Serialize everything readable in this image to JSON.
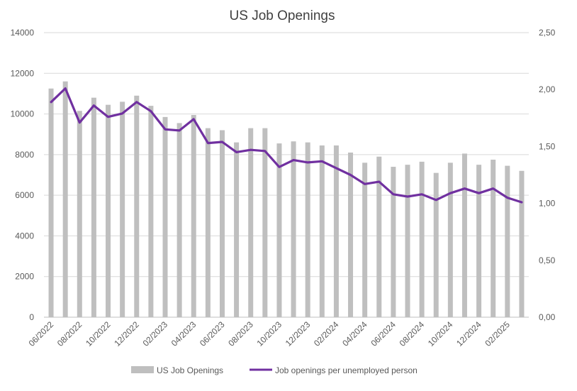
{
  "chart_data": {
    "type": "bar+line",
    "title": "US Job Openings",
    "xlabel": "",
    "ylabel": "",
    "x_tick_labels": [
      "06/2022",
      "08/2022",
      "10/2022",
      "12/2022",
      "02/2023",
      "04/2023",
      "06/2023",
      "08/2023",
      "10/2023",
      "12/2023",
      "02/2024",
      "04/2024",
      "06/2024",
      "08/2024",
      "10/2024",
      "12/2024",
      "02/2025"
    ],
    "categories": [
      "06/2022",
      "07/2022",
      "08/2022",
      "09/2022",
      "10/2022",
      "11/2022",
      "12/2022",
      "01/2023",
      "02/2023",
      "03/2023",
      "04/2023",
      "05/2023",
      "06/2023",
      "07/2023",
      "08/2023",
      "09/2023",
      "10/2023",
      "11/2023",
      "12/2023",
      "01/2024",
      "02/2024",
      "03/2024",
      "04/2024",
      "05/2024",
      "06/2024",
      "07/2024",
      "08/2024",
      "09/2024",
      "10/2024",
      "11/2024",
      "12/2024",
      "01/2025",
      "02/2025",
      "03/2025"
    ],
    "ylim_left": [
      0,
      14000
    ],
    "yticks_left": [
      "0",
      "2000",
      "4000",
      "6000",
      "8000",
      "10000",
      "12000",
      "14000"
    ],
    "ylim_right": [
      0,
      2.5
    ],
    "yticks_right": [
      "0,00",
      "0,50",
      "1,00",
      "1,50",
      "2,00",
      "2,50"
    ],
    "grid": true,
    "legend_position": "bottom",
    "series": [
      {
        "name": "US Job Openings",
        "type": "bar",
        "axis": "left",
        "color": "#bfbfbf",
        "values": [
          11250,
          11600,
          10150,
          10800,
          10450,
          10600,
          10900,
          10400,
          9850,
          9550,
          9950,
          9300,
          9200,
          8600,
          9300,
          9300,
          8550,
          8650,
          8600,
          8450,
          8450,
          8100,
          7600,
          7900,
          7400,
          7500,
          7650,
          7100,
          7600,
          8050,
          7500,
          7750,
          7450,
          7200
        ]
      },
      {
        "name": "Job openings per unemployed person",
        "type": "line",
        "axis": "right",
        "color": "#7030a0",
        "values": [
          1.89,
          2.01,
          1.71,
          1.86,
          1.76,
          1.79,
          1.89,
          1.81,
          1.65,
          1.64,
          1.74,
          1.53,
          1.54,
          1.45,
          1.47,
          1.46,
          1.32,
          1.38,
          1.36,
          1.37,
          1.31,
          1.25,
          1.17,
          1.19,
          1.08,
          1.06,
          1.08,
          1.03,
          1.09,
          1.13,
          1.09,
          1.13,
          1.05,
          1.01
        ]
      }
    ]
  }
}
